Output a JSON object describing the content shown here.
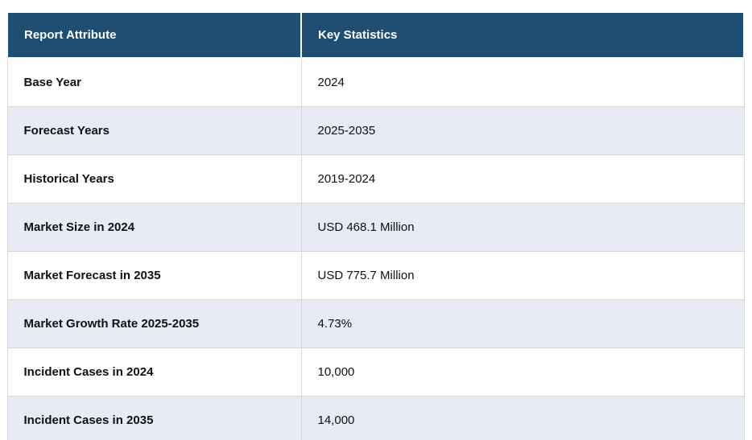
{
  "colors": {
    "header_bg": "#1F4E74",
    "header_text": "#FFFFFF",
    "alt_row_bg": "#E8EAF4",
    "row_bg": "#FFFFFF",
    "border": "#D7D7D7",
    "body_text": "#111111"
  },
  "table": {
    "columns": [
      {
        "label": "Report Attribute"
      },
      {
        "label": "Key Statistics"
      }
    ],
    "rows": [
      {
        "attribute": "Base Year",
        "value": "2024"
      },
      {
        "attribute": "Forecast Years",
        "value": "2025-2035"
      },
      {
        "attribute": "Historical Years",
        "value": "2019-2024"
      },
      {
        "attribute": "Market Size in 2024",
        "value": "USD 468.1 Million"
      },
      {
        "attribute": "Market Forecast in 2035",
        "value": "USD 775.7 Million"
      },
      {
        "attribute": "Market Growth Rate 2025-2035",
        "value": "4.73%"
      },
      {
        "attribute": "Incident Cases in 2024",
        "value": "10,000"
      },
      {
        "attribute": "Incident Cases in 2035",
        "value": "14,000"
      }
    ]
  },
  "chart_data": {
    "type": "table",
    "title": "",
    "columns": [
      "Report Attribute",
      "Key Statistics"
    ],
    "rows": [
      [
        "Base Year",
        "2024"
      ],
      [
        "Forecast Years",
        "2025-2035"
      ],
      [
        "Historical Years",
        "2019-2024"
      ],
      [
        "Market Size in 2024",
        "USD 468.1 Million"
      ],
      [
        "Market Forecast in 2035",
        "USD 775.7 Million"
      ],
      [
        "Market Growth Rate 2025-2035",
        "4.73%"
      ],
      [
        "Incident Cases in 2024",
        "10,000"
      ],
      [
        "Incident Cases in 2035",
        "14,000"
      ]
    ]
  }
}
